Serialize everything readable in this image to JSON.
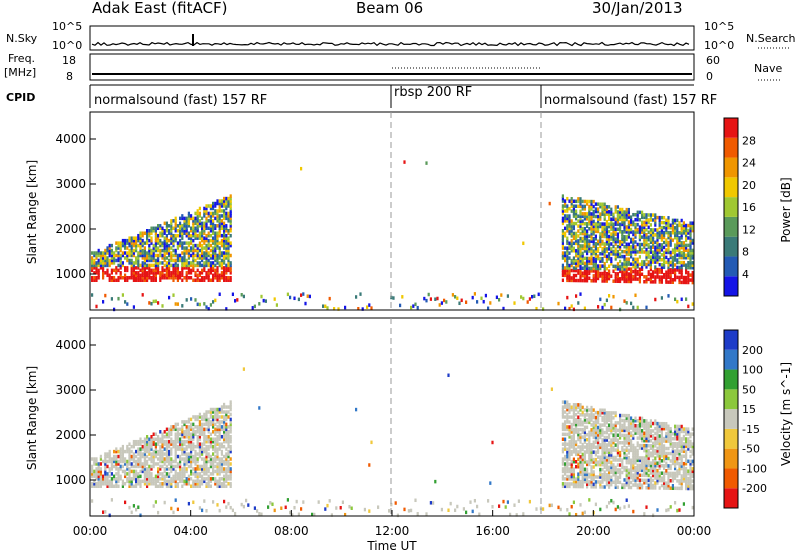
{
  "header": {
    "station": "Adak East (fitACF)",
    "beam": "Beam 06",
    "date": "30/Jan/2013"
  },
  "strip_labels": {
    "nsky": "N.Sky",
    "nsearch": "N.Search",
    "freq_top": "Freq.",
    "freq_unit": "[MHz]",
    "nave": "Nave",
    "cpid": "CPID",
    "nsky_tick_hi": "10^5",
    "nsky_tick_lo": "10^0",
    "nsearch_tick_hi": "10^5",
    "nsearch_tick_lo": "10^0",
    "freq_tick_hi": "18",
    "freq_tick_lo": "8",
    "nave_tick_hi": "60",
    "nave_tick_lo": "0"
  },
  "cpid_segments": [
    {
      "label": "normalsound (fast) 157 RF",
      "start_h": 0,
      "end_h": 12
    },
    {
      "label": "rbsp 200 RF",
      "start_h": 12,
      "end_h": 18
    },
    {
      "label": "normalsound (fast) 157 RF",
      "start_h": 18,
      "end_h": 24
    }
  ],
  "chart_data": [
    {
      "type": "heatmap",
      "panel": "power",
      "xlabel": "",
      "ylabel": "Slant Range [km]",
      "xlim": [
        0,
        24
      ],
      "ylim": [
        200,
        4600
      ],
      "yticks": [
        1000,
        2000,
        3000,
        4000
      ],
      "colorbar_label": "Power [dB]",
      "colorbar_ticks": [
        "4",
        "8",
        "12",
        "16",
        "20",
        "24",
        "28"
      ],
      "colors": [
        "#1414e6",
        "#235ab4",
        "#3a7a78",
        "#5a9a5a",
        "#a0c832",
        "#f0c800",
        "#f09600",
        "#f05a00",
        "#e61414"
      ],
      "scatter_echo_ranges_km": {
        "evening": [
          900,
          2900
        ],
        "morning": [
          900,
          2800
        ]
      }
    },
    {
      "type": "heatmap",
      "panel": "velocity",
      "xlabel": "Time UT",
      "ylabel": "Slant Range [km]",
      "xlim": [
        0,
        24
      ],
      "ylim": [
        200,
        4600
      ],
      "yticks": [
        1000,
        2000,
        3000,
        4000
      ],
      "xticks": [
        "00:00",
        "04:00",
        "08:00",
        "12:00",
        "16:00",
        "20:00",
        "00:00"
      ],
      "colorbar_label": "Velocity [m s^-1]",
      "colorbar_ticks": [
        "200",
        "100",
        "50",
        "15",
        "-15",
        "-50",
        "-100",
        "-200"
      ],
      "colors": [
        "#1e3cc8",
        "#3278c8",
        "#32a032",
        "#8cc83c",
        "#c8c8bc",
        "#f0c83c",
        "#f09614",
        "#f05a00",
        "#e61414"
      ]
    }
  ]
}
